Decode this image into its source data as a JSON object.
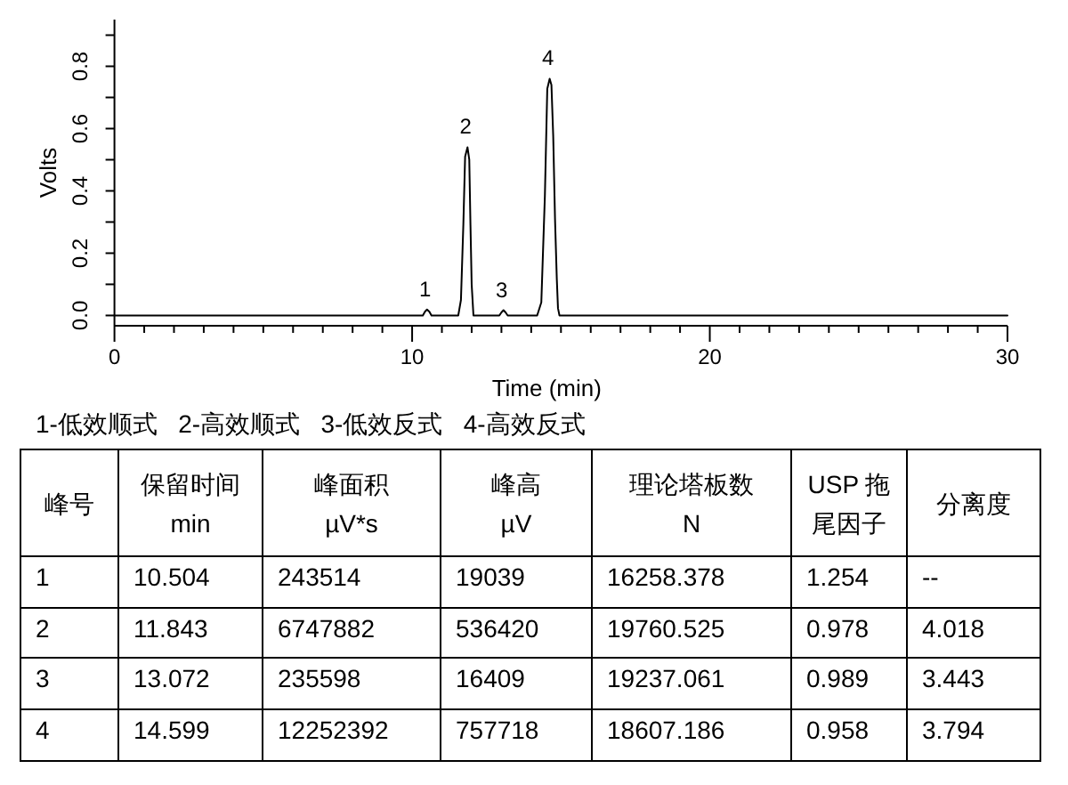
{
  "chart_data": [
    {
      "type": "line",
      "xlabel": "Time (min)",
      "ylabel": "Volts",
      "color": "#000000",
      "x": [
        0,
        10.36,
        10.43,
        10.5,
        10.58,
        10.65,
        11.55,
        11.64,
        11.72,
        11.78,
        11.86,
        11.92,
        11.96,
        12.0,
        12.06,
        12.93,
        13.0,
        13.07,
        13.14,
        13.21,
        14.2,
        14.34,
        14.46,
        14.54,
        14.62,
        14.68,
        14.74,
        14.8,
        14.86,
        14.9,
        14.95,
        30
      ],
      "values": [
        0,
        0,
        0.012,
        0.019,
        0.012,
        0,
        0,
        0.05,
        0.29,
        0.51,
        0.54,
        0.5,
        0.29,
        0.1,
        0,
        0,
        0.01,
        0.017,
        0.01,
        0,
        0,
        0.042,
        0.385,
        0.728,
        0.76,
        0.74,
        0.575,
        0.309,
        0.118,
        0.023,
        0,
        0
      ],
      "xlim": [
        0,
        30
      ],
      "ylim": [
        -0.033,
        0.95
      ],
      "xticks": [
        0,
        {
          "value": 1,
          "label": null
        },
        {
          "value": 2,
          "label": null
        },
        {
          "value": 3,
          "label": null
        },
        {
          "value": 4,
          "label": null
        },
        {
          "value": 5,
          "label": null
        },
        {
          "value": 6,
          "label": null
        },
        {
          "value": 7,
          "label": null
        },
        {
          "value": 8,
          "label": null
        },
        {
          "value": 9,
          "label": null
        },
        10,
        {
          "value": 11,
          "label": null
        },
        {
          "value": 12,
          "label": null
        },
        {
          "value": 13,
          "label": null
        },
        {
          "value": 14,
          "label": null
        },
        {
          "value": 15,
          "label": null
        },
        {
          "value": 16,
          "label": null
        },
        {
          "value": 17,
          "label": null
        },
        {
          "value": 18,
          "label": null
        },
        {
          "value": 19,
          "label": null
        },
        20,
        {
          "value": 21,
          "label": null
        },
        {
          "value": 22,
          "label": null
        },
        {
          "value": 23,
          "label": null
        },
        {
          "value": 24,
          "label": null
        },
        {
          "value": 25,
          "label": null
        },
        {
          "value": 26,
          "label": null
        },
        {
          "value": 27,
          "label": null
        },
        {
          "value": 28,
          "label": null
        },
        {
          "value": 29,
          "label": null
        },
        30
      ],
      "yticks": [
        {
          "value": 0,
          "label": "0.0"
        },
        {
          "value": 0.1,
          "label": null
        },
        0.2,
        {
          "value": 0.3,
          "label": null
        },
        0.4,
        {
          "value": 0.5,
          "label": null
        },
        0.6,
        {
          "value": 0.7,
          "label": null
        },
        0.8,
        {
          "value": 0.9,
          "label": null
        }
      ],
      "annotations": [
        {
          "text": "1",
          "x": 10.5,
          "y": 0.019
        },
        {
          "text": "2",
          "x": 11.86,
          "y": 0.54
        },
        {
          "text": "3",
          "x": 13.07,
          "y": 0.017
        },
        {
          "text": "4",
          "x": 14.62,
          "y": 0.76
        },
        "1-低效顺式   2-高效顺式   3-低效反式   4-高效反式"
      ]
    },
    {
      "type": "heatmap",
      "ylabel": "峰号",
      "categories": [
        "保留时间\nmin",
        "峰面积\nµV*s",
        "峰高\nµV",
        "理论塔板数\nN",
        "USP 拖尾因子",
        "分离度"
      ],
      "y_categories": [
        "1",
        "2",
        "3",
        "4"
      ],
      "cells": [
        [
          null,
          null,
          null,
          null,
          null,
          null
        ],
        [
          null,
          null,
          null,
          null,
          null,
          null
        ],
        [
          null,
          null,
          null,
          null,
          null,
          null
        ],
        [
          null,
          null,
          null,
          null,
          null,
          null
        ]
      ],
      "cell_labels": [
        [
          "10.504",
          "243514",
          "19039",
          "16258.378",
          "1.254",
          "--"
        ],
        [
          "11.843",
          "6747882",
          "536420",
          "19760.525",
          "0.978",
          "4.018"
        ],
        [
          "13.072",
          "235598",
          "16409",
          "19237.061",
          "0.989",
          "3.443"
        ],
        [
          "14.599",
          "12252392",
          "757718",
          "18607.186",
          "0.958",
          "3.794"
        ]
      ]
    }
  ]
}
